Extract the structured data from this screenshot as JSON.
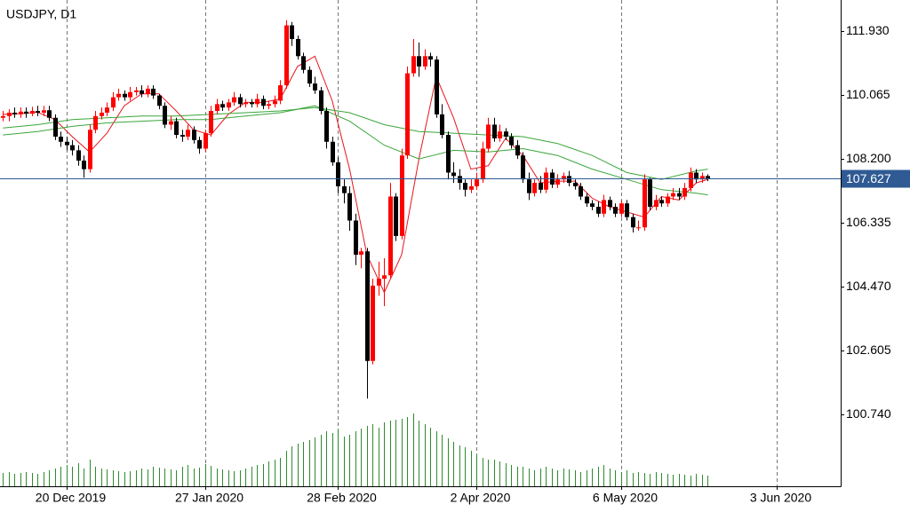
{
  "chart_data": {
    "type": "candlestick",
    "title": "USDJPY, D1",
    "xlim": [
      -0.5,
      145
    ],
    "xticks": [
      {
        "value": 11,
        "label": "20 Dec 2019"
      },
      {
        "value": 35,
        "label": "27 Jan 2020"
      },
      {
        "value": 58,
        "label": "28 Feb 2020"
      },
      {
        "value": 82,
        "label": "2 Apr 2020"
      },
      {
        "value": 107,
        "label": "6 May 2020"
      },
      {
        "value": 134,
        "label": "3 Jun 2020"
      }
    ],
    "ylim": [
      98.64,
      112.84
    ],
    "yticks": [
      {
        "value": 111.93,
        "label": "111.930"
      },
      {
        "value": 110.065,
        "label": "110.065"
      },
      {
        "value": 108.2,
        "label": "108.200"
      },
      {
        "value": 106.335,
        "label": "106.335"
      },
      {
        "value": 104.47,
        "label": "104.470"
      },
      {
        "value": 102.605,
        "label": "102.605"
      },
      {
        "value": 100.74,
        "label": "100.740"
      }
    ],
    "grid": true,
    "up_color": "#ff0000",
    "down_color": "#000000",
    "volume_color": "#2e8b2e",
    "current_price": 107.627,
    "current_price_color": "#2f5a93",
    "open": [
      109.4,
      109.45,
      109.55,
      109.5,
      109.58,
      109.52,
      109.6,
      109.55,
      109.62,
      109.4,
      108.85,
      108.7,
      108.6,
      108.45,
      108.15,
      107.9,
      109.05,
      109.45,
      109.55,
      109.7,
      110.0,
      110.1,
      110.0,
      110.15,
      110.2,
      110.1,
      110.25,
      110.05,
      109.75,
      109.2,
      109.3,
      108.9,
      108.85,
      109.05,
      108.75,
      108.5,
      108.95,
      109.6,
      109.8,
      109.7,
      109.85,
      110.0,
      109.8,
      109.85,
      109.8,
      109.95,
      109.75,
      109.8,
      109.9,
      110.35,
      112.1,
      111.7,
      111.2,
      110.8,
      110.4,
      110.2,
      109.6,
      108.7,
      108.1,
      107.4,
      107.2,
      106.4,
      105.4,
      105.5,
      102.3,
      104.5,
      104.7,
      104.8,
      107.1,
      105.95,
      108.3,
      110.7,
      111.2,
      110.9,
      111.2,
      111.1,
      109.5,
      108.9,
      107.8,
      107.7,
      107.5,
      107.3,
      107.4,
      107.6,
      108.5,
      109.2,
      108.8,
      109.0,
      108.85,
      108.6,
      108.3,
      107.6,
      107.2,
      107.5,
      107.3,
      107.8,
      107.45,
      107.6,
      107.7,
      107.5,
      107.4,
      107.1,
      106.9,
      106.8,
      106.6,
      107.0,
      106.8,
      106.6,
      106.9,
      106.5,
      106.2,
      106.2,
      107.6,
      106.8,
      107.0,
      106.9,
      107.1,
      107.2,
      107.1,
      107.35,
      107.8,
      107.6,
      107.7
    ],
    "high": [
      109.6,
      109.65,
      109.7,
      109.7,
      109.7,
      109.72,
      109.75,
      109.75,
      109.75,
      109.5,
      109.0,
      108.85,
      108.75,
      108.6,
      108.3,
      109.2,
      109.6,
      109.7,
      109.85,
      110.15,
      110.25,
      110.2,
      110.3,
      110.3,
      110.35,
      110.35,
      110.35,
      110.1,
      109.85,
      109.45,
      109.4,
      109.05,
      109.2,
      109.15,
      108.85,
      109.05,
      109.75,
      109.95,
      109.9,
      109.95,
      110.15,
      110.1,
      109.95,
      109.95,
      110.1,
      110.05,
      109.9,
      110.05,
      110.5,
      112.25,
      112.2,
      111.8,
      111.3,
      110.9,
      110.6,
      110.3,
      109.7,
      108.85,
      108.25,
      107.6,
      107.4,
      106.6,
      105.6,
      105.6,
      104.7,
      105.2,
      105.3,
      107.5,
      107.2,
      108.5,
      110.9,
      111.7,
      111.6,
      111.4,
      111.3,
      111.2,
      109.8,
      109.0,
      108.1,
      107.9,
      107.6,
      107.6,
      107.8,
      108.7,
      109.4,
      109.4,
      109.2,
      109.1,
      108.95,
      108.75,
      108.4,
      107.8,
      107.6,
      107.7,
      107.95,
      107.9,
      107.75,
      107.8,
      107.85,
      107.6,
      107.5,
      107.2,
      107.0,
      106.95,
      107.15,
      107.1,
      106.9,
      107.0,
      107.0,
      106.6,
      106.4,
      107.75,
      107.65,
      107.15,
      107.1,
      107.2,
      107.35,
      107.35,
      107.5,
      107.95,
      107.9,
      107.8,
      107.75
    ],
    "low": [
      109.3,
      109.3,
      109.4,
      109.4,
      109.4,
      109.45,
      109.45,
      109.45,
      109.3,
      108.75,
      108.55,
      108.45,
      108.3,
      108.0,
      107.65,
      107.8,
      108.95,
      109.35,
      109.45,
      109.6,
      109.9,
      109.9,
      109.9,
      110.05,
      110.0,
      110.0,
      109.95,
      109.65,
      109.1,
      109.05,
      108.8,
      108.7,
      108.75,
      108.65,
      108.35,
      108.4,
      108.85,
      109.5,
      109.6,
      109.6,
      109.75,
      109.7,
      109.7,
      109.7,
      109.7,
      109.65,
      109.65,
      109.7,
      109.8,
      110.25,
      111.5,
      111.1,
      110.7,
      110.3,
      110.1,
      109.5,
      108.5,
      108.0,
      107.2,
      106.9,
      106.1,
      105.1,
      105.0,
      101.2,
      102.2,
      104.2,
      103.9,
      104.7,
      105.8,
      105.85,
      108.2,
      110.6,
      110.6,
      110.8,
      110.9,
      109.4,
      108.8,
      107.6,
      107.5,
      107.3,
      107.1,
      107.2,
      107.3,
      107.5,
      108.4,
      108.7,
      108.7,
      108.75,
      108.5,
      108.2,
      107.5,
      107.0,
      107.1,
      107.2,
      107.2,
      107.35,
      107.35,
      107.5,
      107.4,
      107.3,
      107.0,
      106.8,
      106.7,
      106.5,
      106.5,
      106.7,
      106.5,
      106.5,
      106.4,
      106.05,
      106.1,
      106.1,
      106.7,
      106.7,
      106.8,
      106.8,
      107.0,
      107.0,
      107.0,
      107.25,
      107.5,
      107.5,
      107.55
    ],
    "close": [
      109.45,
      109.55,
      109.5,
      109.58,
      109.52,
      109.6,
      109.55,
      109.62,
      109.4,
      108.85,
      108.7,
      108.6,
      108.45,
      108.15,
      107.9,
      109.05,
      109.45,
      109.55,
      109.7,
      110.0,
      110.1,
      110.0,
      110.15,
      110.2,
      110.1,
      110.25,
      110.05,
      109.75,
      109.2,
      109.3,
      108.9,
      108.85,
      109.05,
      108.75,
      108.5,
      108.95,
      109.6,
      109.8,
      109.7,
      109.85,
      110.0,
      109.8,
      109.85,
      109.8,
      109.95,
      109.75,
      109.8,
      109.9,
      110.35,
      112.1,
      111.7,
      111.2,
      110.8,
      110.4,
      110.2,
      109.6,
      108.7,
      108.1,
      107.4,
      107.2,
      106.4,
      105.4,
      105.5,
      102.3,
      104.5,
      104.7,
      104.8,
      107.1,
      105.95,
      108.3,
      110.7,
      111.2,
      110.9,
      111.2,
      111.1,
      109.5,
      108.9,
      107.8,
      107.7,
      107.5,
      107.3,
      107.4,
      107.6,
      108.5,
      109.2,
      108.8,
      109.0,
      108.85,
      108.6,
      108.3,
      107.6,
      107.2,
      107.5,
      107.3,
      107.8,
      107.45,
      107.6,
      107.7,
      107.5,
      107.4,
      107.1,
      106.9,
      106.8,
      106.6,
      107.0,
      106.8,
      106.6,
      106.9,
      106.5,
      106.2,
      106.2,
      107.6,
      106.8,
      107.0,
      106.9,
      107.1,
      107.2,
      107.1,
      107.35,
      107.8,
      107.6,
      107.7,
      107.627
    ],
    "volume": [
      15,
      16,
      14,
      15,
      16,
      15,
      14,
      16,
      18,
      20,
      22,
      24,
      22,
      26,
      20,
      30,
      22,
      20,
      19,
      18,
      17,
      16,
      17,
      18,
      20,
      19,
      22,
      21,
      20,
      19,
      18,
      22,
      24,
      20,
      21,
      25,
      23,
      20,
      19,
      18,
      17,
      18,
      20,
      22,
      24,
      25,
      28,
      30,
      32,
      40,
      45,
      48,
      50,
      52,
      55,
      58,
      62,
      60,
      64,
      56,
      58,
      62,
      65,
      68,
      70,
      66,
      72,
      74,
      75,
      76,
      78,
      82,
      74,
      70,
      66,
      62,
      58,
      54,
      50,
      46,
      44,
      40,
      36,
      32,
      30,
      30,
      28,
      26,
      24,
      22,
      22,
      20,
      18,
      20,
      22,
      20,
      18,
      20,
      19,
      18,
      16,
      18,
      20,
      22,
      24,
      20,
      18,
      16,
      18,
      15,
      16,
      15,
      14,
      16,
      15,
      14,
      13,
      14,
      13,
      12,
      14,
      13,
      12
    ],
    "series": [
      {
        "color": "#e8141b",
        "x": [
          0,
          3,
          6,
          9,
          12,
          15,
          18,
          21,
          24,
          27,
          30,
          33,
          36,
          39,
          42,
          45,
          48,
          51,
          54,
          57,
          60,
          63,
          66,
          69,
          72,
          75,
          78,
          81,
          84,
          87,
          90,
          93,
          96,
          99,
          102,
          105,
          108,
          111,
          114,
          117,
          120,
          122
        ],
        "values": [
          109.5,
          109.52,
          109.56,
          109.35,
          108.85,
          108.4,
          108.95,
          109.75,
          110.1,
          110.1,
          109.6,
          109.05,
          108.9,
          109.5,
          109.85,
          109.85,
          109.95,
          110.9,
          111.2,
          109.9,
          107.9,
          105.4,
          104.3,
          105.4,
          108.2,
          110.6,
          109.4,
          107.9,
          108.0,
          108.8,
          108.3,
          107.5,
          107.55,
          107.55,
          107.05,
          106.8,
          106.65,
          106.5,
          107.1,
          107.0,
          107.5,
          107.6
        ]
      },
      {
        "color": "#3aa63a",
        "x": [
          0,
          6,
          12,
          18,
          24,
          30,
          36,
          42,
          48,
          54,
          60,
          66,
          72,
          78,
          84,
          90,
          96,
          102,
          108,
          114,
          120,
          122
        ],
        "values": [
          108.9,
          109.0,
          109.15,
          109.25,
          109.3,
          109.35,
          109.35,
          109.45,
          109.55,
          109.75,
          109.3,
          108.6,
          108.2,
          108.45,
          108.4,
          108.5,
          108.3,
          107.9,
          107.6,
          107.3,
          107.2,
          107.15
        ]
      },
      {
        "color": "#3aa63a",
        "x": [
          0,
          6,
          12,
          18,
          24,
          30,
          36,
          42,
          48,
          54,
          60,
          66,
          72,
          78,
          84,
          90,
          96,
          102,
          108,
          114,
          120,
          122
        ],
        "values": [
          109.1,
          109.2,
          109.35,
          109.4,
          109.45,
          109.45,
          109.5,
          109.55,
          109.6,
          109.7,
          109.55,
          109.2,
          109.0,
          108.95,
          108.9,
          108.85,
          108.65,
          108.3,
          107.8,
          107.6,
          107.85,
          107.9
        ]
      }
    ]
  }
}
